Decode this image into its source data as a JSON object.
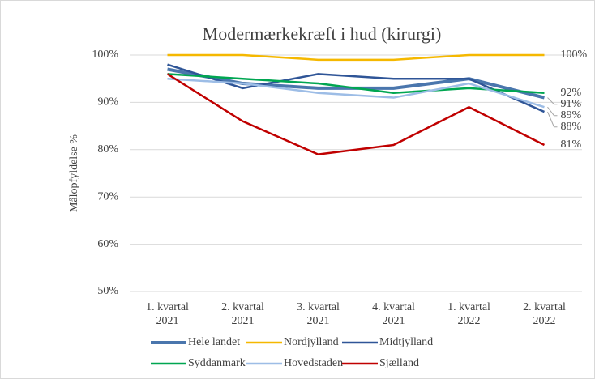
{
  "chart_data": {
    "type": "line",
    "title": "Modermærkekræft i hud (kirurgi)",
    "y_label": "Målopfyldelse %",
    "categories": [
      "1. kvartal 2021",
      "2. kvartal 2021",
      "3. kvartal 2021",
      "4. kvartal 2021",
      "1. kvartal 2022",
      "2. kvartal 2022"
    ],
    "ylim": [
      50,
      100
    ],
    "yticks": [
      {
        "value": 50,
        "label": "50%"
      },
      {
        "value": 60,
        "label": "60%"
      },
      {
        "value": 70,
        "label": "70%"
      },
      {
        "value": 80,
        "label": "80%"
      },
      {
        "value": 90,
        "label": "90%"
      },
      {
        "value": 100,
        "label": "100%"
      }
    ],
    "grid": true,
    "legend": "bottom",
    "series": [
      {
        "name": "Hele landet",
        "color": "#4a76ad",
        "values": [
          97,
          94,
          93,
          93,
          95,
          91
        ],
        "value_labels": [
          null,
          null,
          null,
          null,
          null,
          "91%"
        ]
      },
      {
        "name": "Nordjylland",
        "color": "#f5b800",
        "values": [
          100,
          100,
          99,
          99,
          100,
          100
        ],
        "value_labels": [
          null,
          null,
          null,
          null,
          null,
          "100%"
        ]
      },
      {
        "name": "Midtjylland",
        "color": "#2f5597",
        "values": [
          98,
          93,
          96,
          95,
          95,
          88
        ],
        "value_labels": [
          null,
          null,
          null,
          null,
          null,
          "88%"
        ]
      },
      {
        "name": "Syddanmark",
        "color": "#00a651",
        "values": [
          96,
          95,
          94,
          92,
          93,
          92
        ],
        "value_labels": [
          null,
          null,
          null,
          null,
          null,
          "92%"
        ]
      },
      {
        "name": "Hovedstaden",
        "color": "#9dbde6",
        "values": [
          95,
          94,
          92,
          91,
          94,
          89
        ],
        "value_labels": [
          null,
          null,
          null,
          null,
          null,
          "89%"
        ]
      },
      {
        "name": "Sjælland",
        "color": "#c00000",
        "values": [
          96,
          86,
          79,
          81,
          89,
          81
        ],
        "value_labels": [
          null,
          null,
          null,
          null,
          null,
          "81%"
        ]
      }
    ]
  }
}
